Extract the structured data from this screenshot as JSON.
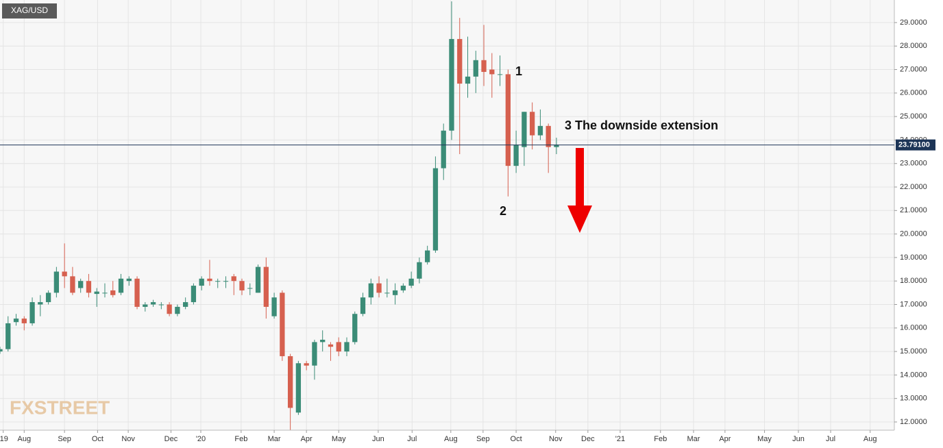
{
  "chart_data": {
    "type": "candlestick",
    "title": "XAG/USD",
    "logo": "FXSTREET",
    "open": [
      15.0,
      15.1,
      16.25,
      16.4,
      16.2,
      17.0,
      17.1,
      17.5,
      18.4,
      18.2,
      17.7,
      18.0,
      17.45,
      17.5,
      17.6,
      17.5,
      18.0,
      18.1,
      16.9,
      17.0,
      17.0,
      17.0,
      16.6,
      16.9,
      17.1,
      17.8,
      18.1,
      18.0,
      18.0,
      18.2,
      18.0,
      17.7,
      17.5,
      18.6,
      16.5,
      17.5,
      14.8,
      12.4,
      14.5,
      14.4,
      15.4,
      15.3,
      15.4,
      15.0,
      15.4,
      16.6,
      17.3,
      17.9,
      17.5,
      17.4,
      17.6,
      17.8,
      18.1,
      18.8,
      19.3,
      22.8,
      24.4,
      28.3,
      26.4,
      26.7,
      27.4,
      27.0,
      26.8,
      26.8,
      22.9,
      23.7,
      25.2,
      24.2,
      24.6,
      23.7
    ],
    "high": [
      15.2,
      16.5,
      16.6,
      16.5,
      17.3,
      17.4,
      17.6,
      18.6,
      19.6,
      18.6,
      18.1,
      18.3,
      17.7,
      17.9,
      18.0,
      18.3,
      18.2,
      18.2,
      17.1,
      17.2,
      17.1,
      17.1,
      17.0,
      17.3,
      17.9,
      18.2,
      18.9,
      18.1,
      18.2,
      18.3,
      18.1,
      17.9,
      18.7,
      19.0,
      17.5,
      17.6,
      14.9,
      14.6,
      14.6,
      15.5,
      15.9,
      15.4,
      15.6,
      15.6,
      16.7,
      17.5,
      18.1,
      18.2,
      18.1,
      17.9,
      17.9,
      18.4,
      19.0,
      19.5,
      23.3,
      24.7,
      29.9,
      29.2,
      28.4,
      27.8,
      28.9,
      27.7,
      27.6,
      27.0,
      24.4,
      25.2,
      25.6,
      25.3,
      24.7,
      24.1
    ],
    "low": [
      14.9,
      15.0,
      16.1,
      15.9,
      16.1,
      16.5,
      17.0,
      17.3,
      17.7,
      17.4,
      17.5,
      17.3,
      16.9,
      17.3,
      17.3,
      17.4,
      17.8,
      16.8,
      16.7,
      16.9,
      16.8,
      16.5,
      16.5,
      16.8,
      17.0,
      17.6,
      17.8,
      17.7,
      17.7,
      17.4,
      17.4,
      17.4,
      17.5,
      16.4,
      16.4,
      14.6,
      11.6,
      12.3,
      14.2,
      13.8,
      15.0,
      14.6,
      14.8,
      14.8,
      15.3,
      16.5,
      17.0,
      17.3,
      17.3,
      17.0,
      17.5,
      17.7,
      17.9,
      18.7,
      19.2,
      22.3,
      24.0,
      23.4,
      25.8,
      26.0,
      26.3,
      25.8,
      26.3,
      21.6,
      22.6,
      22.9,
      23.6,
      24.0,
      22.6,
      23.4
    ],
    "close": [
      15.1,
      16.2,
      16.4,
      16.2,
      17.1,
      17.1,
      17.5,
      18.4,
      18.2,
      17.5,
      18.0,
      17.5,
      17.55,
      17.5,
      17.4,
      18.1,
      18.1,
      16.9,
      17.0,
      17.1,
      17.0,
      16.6,
      16.9,
      17.1,
      17.8,
      18.1,
      18.0,
      18.0,
      18.0,
      18.0,
      17.6,
      17.7,
      18.6,
      16.9,
      17.3,
      14.8,
      12.6,
      14.5,
      14.4,
      15.4,
      15.5,
      15.2,
      15.0,
      15.4,
      16.6,
      17.3,
      17.9,
      17.5,
      17.5,
      17.6,
      17.8,
      18.1,
      18.8,
      19.3,
      22.8,
      24.4,
      28.3,
      26.4,
      26.7,
      27.4,
      26.9,
      26.8,
      26.8,
      22.9,
      23.8,
      25.2,
      24.2,
      24.6,
      23.7,
      23.8
    ],
    "up_color": "#3b8c77",
    "down_color": "#d6604f",
    "xlim": [
      0,
      110.9
    ],
    "xticks": [
      {
        "value": 0.4,
        "label": "'19"
      },
      {
        "value": 3.0,
        "label": "Aug"
      },
      {
        "value": 8.0,
        "label": "Sep"
      },
      {
        "value": 12.1,
        "label": "Oct"
      },
      {
        "value": 15.9,
        "label": "Nov"
      },
      {
        "value": 21.2,
        "label": "Dec"
      },
      {
        "value": 24.9,
        "label": "'20"
      },
      {
        "value": 29.9,
        "label": "Feb"
      },
      {
        "value": 34.0,
        "label": "Mar"
      },
      {
        "value": 38.0,
        "label": "Apr"
      },
      {
        "value": 42.0,
        "label": "May"
      },
      {
        "value": 46.9,
        "label": "Jun"
      },
      {
        "value": 51.1,
        "label": "Jul"
      },
      {
        "value": 55.9,
        "label": "Aug"
      },
      {
        "value": 59.9,
        "label": "Sep"
      },
      {
        "value": 64.0,
        "label": "Oct"
      },
      {
        "value": 68.9,
        "label": "Nov"
      },
      {
        "value": 72.9,
        "label": "Dec"
      },
      {
        "value": 76.9,
        "label": "'21"
      },
      {
        "value": 81.9,
        "label": "Feb"
      },
      {
        "value": 86.0,
        "label": "Mar"
      },
      {
        "value": 89.9,
        "label": "Apr"
      },
      {
        "value": 94.8,
        "label": "May"
      },
      {
        "value": 99.0,
        "label": "Jun"
      },
      {
        "value": 103.0,
        "label": "Jul"
      },
      {
        "value": 107.9,
        "label": "Aug"
      }
    ],
    "ylim": [
      11.65,
      29.96
    ],
    "yticks": [
      {
        "value": 12,
        "label": "12.0000"
      },
      {
        "value": 13,
        "label": "13.0000"
      },
      {
        "value": 14,
        "label": "14.0000"
      },
      {
        "value": 15,
        "label": "15.0000"
      },
      {
        "value": 16,
        "label": "16.0000"
      },
      {
        "value": 17,
        "label": "17.0000"
      },
      {
        "value": 18,
        "label": "18.0000"
      },
      {
        "value": 19,
        "label": "19.0000"
      },
      {
        "value": 20,
        "label": "20.0000"
      },
      {
        "value": 21,
        "label": "21.0000"
      },
      {
        "value": 22,
        "label": "22.0000"
      },
      {
        "value": 23,
        "label": "23.0000"
      },
      {
        "value": 24,
        "label": "24.0000"
      },
      {
        "value": 25,
        "label": "25.0000"
      },
      {
        "value": 26,
        "label": "26.0000"
      },
      {
        "value": 27,
        "label": "27.0000"
      },
      {
        "value": 28,
        "label": "28.0000"
      },
      {
        "value": 29,
        "label": "29.0000"
      }
    ],
    "grid": true,
    "last_price": {
      "value": 23.791,
      "label": "23.79100"
    },
    "annotations": [
      "1",
      "2",
      "3 The downside extension"
    ]
  }
}
